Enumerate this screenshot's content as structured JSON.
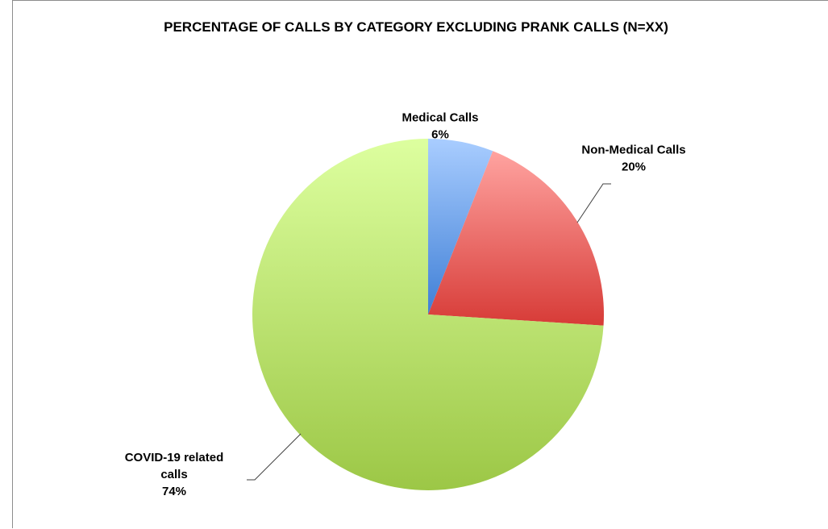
{
  "chart_data": {
    "type": "pie",
    "title": "PERCENTAGE OF CALLS BY CATEGORY EXCLUDING PRANK CALLS (N=XX)",
    "slices": [
      {
        "name": "Medical Calls",
        "value": 6,
        "label_lines": [
          "Medical Calls"
        ],
        "value_label": "6%",
        "color_light": "#a9cdff",
        "color_dark": "#3f7fd6"
      },
      {
        "name": "Non-Medical Calls",
        "value": 20,
        "label_lines": [
          "Non-Medical Calls"
        ],
        "value_label": "20%",
        "color_light": "#ffa3a0",
        "color_dark": "#d73b37"
      },
      {
        "name": "COVID-19 related calls",
        "value": 74,
        "label_lines": [
          "COVID-19 related",
          "calls"
        ],
        "value_label": "74%",
        "color_light": "#ddff9f",
        "color_dark": "#9cc746"
      }
    ],
    "legend": "none",
    "data_labels": "outside-with-leader-lines"
  }
}
